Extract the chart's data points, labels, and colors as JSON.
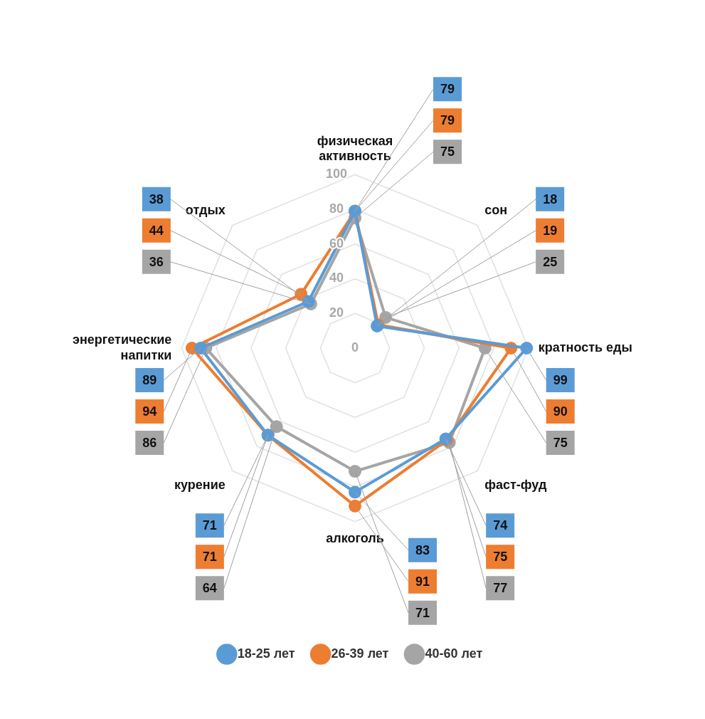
{
  "chart_data": {
    "type": "radar",
    "categories": [
      "физическая активность",
      "сон",
      "кратность еды",
      "фаст-фуд",
      "алкоголь",
      "курение",
      "энергетические напитки",
      "отдых"
    ],
    "series": [
      {
        "name": "18-25 лет",
        "color": "#5b9bd5",
        "values": [
          79,
          18,
          99,
          74,
          83,
          71,
          89,
          38
        ],
        "value_labels": [
          "79",
          "18",
          "99",
          "74",
          "83",
          "71",
          "89",
          "38"
        ]
      },
      {
        "name": "26-39 лет",
        "color": "#ed7d31",
        "values": [
          79,
          19,
          90,
          75,
          91,
          71,
          94,
          44
        ],
        "value_labels": [
          "79",
          "19",
          "90",
          "75",
          "91",
          "71",
          "94",
          "44"
        ]
      },
      {
        "name": "40-60 лет",
        "color": "#a5a5a5",
        "values": [
          75,
          25,
          75,
          77,
          71,
          64,
          86,
          36
        ],
        "value_labels": [
          "75",
          "25",
          "75",
          "77",
          "71",
          "64",
          "86",
          "36"
        ]
      }
    ],
    "ylim": [
      0,
      100
    ],
    "yticks": [
      0,
      20,
      40,
      60,
      80,
      100
    ],
    "grid": true,
    "legend": "bottom",
    "marker": "circle"
  }
}
